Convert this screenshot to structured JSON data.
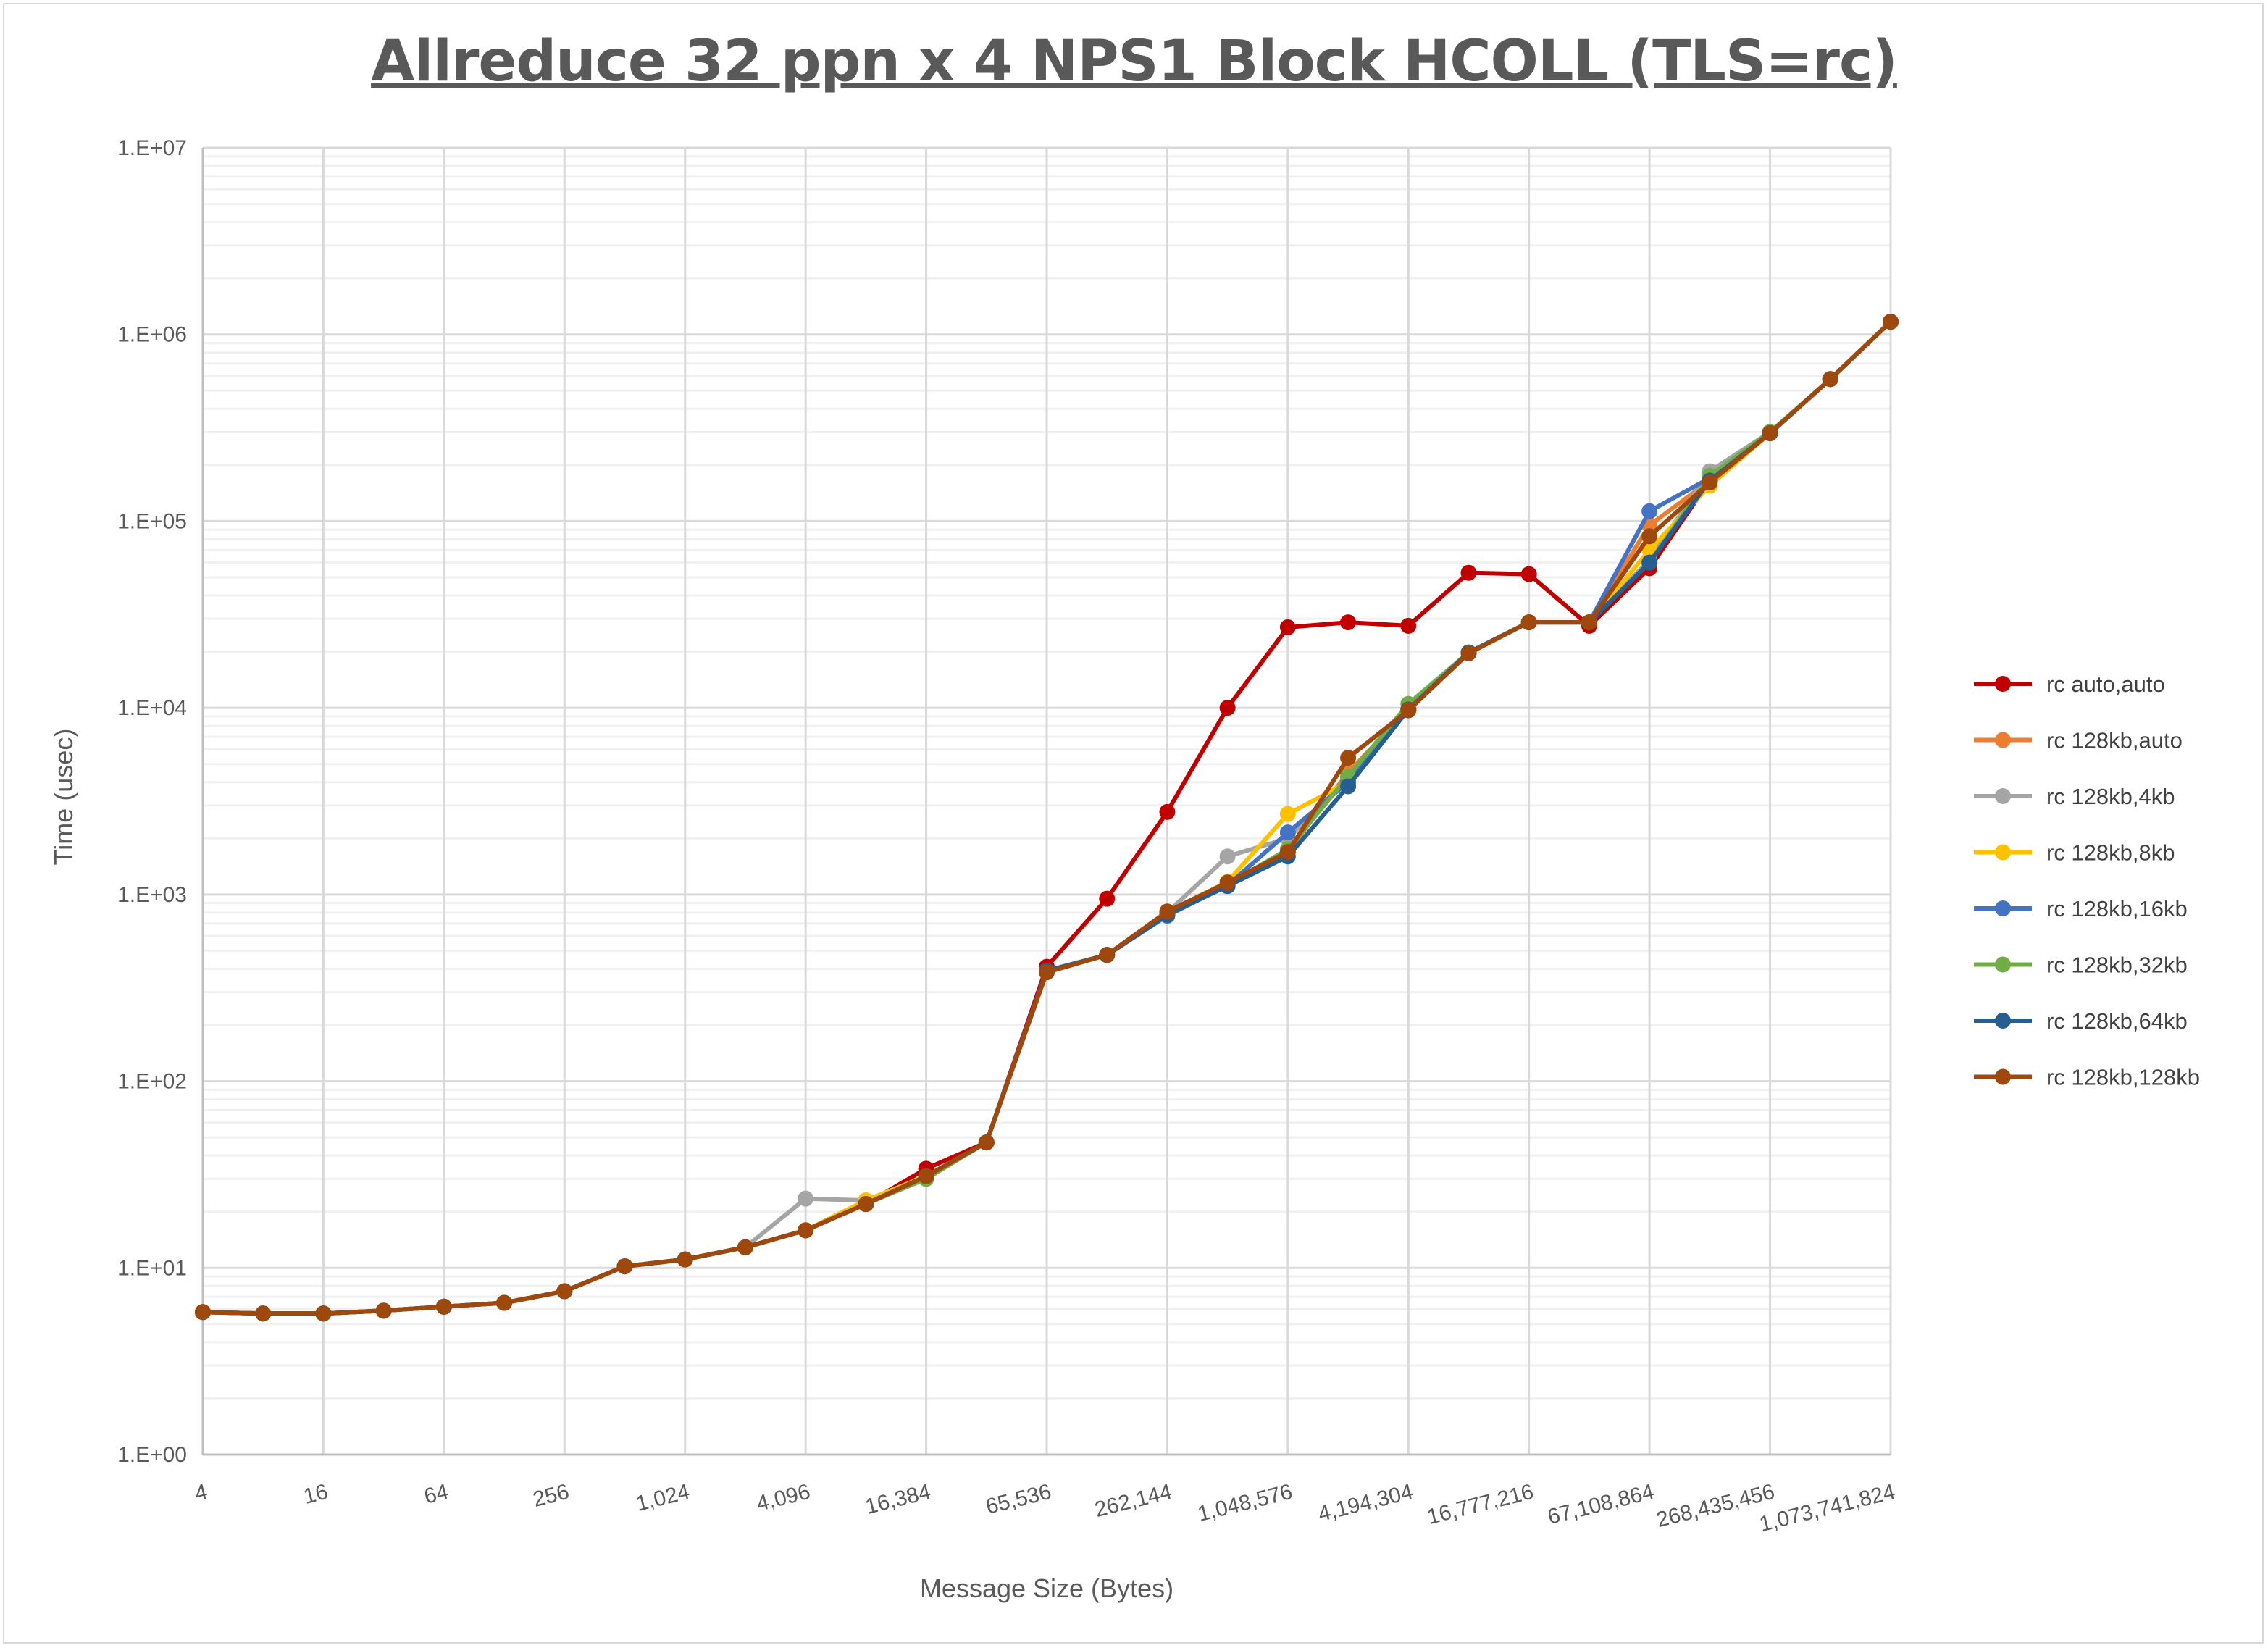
{
  "chart_data": {
    "type": "line",
    "title": "Allreduce 32 ppn x 4 NPS1 Block HCOLL (TLS=rc)",
    "xlabel": "Message Size (Bytes)",
    "ylabel": "Time (usec)",
    "x_scale": "log2",
    "y_scale": "log10",
    "ylim": [
      1,
      10000000
    ],
    "grid": true,
    "legend_position": "right",
    "y_tick_labels": [
      "1.E+00",
      "1.E+01",
      "1.E+02",
      "1.E+03",
      "1.E+04",
      "1.E+05",
      "1.E+06",
      "1.E+07"
    ],
    "x_tick_labels": [
      "4",
      "16",
      "64",
      "256",
      "1,024",
      "4,096",
      "16,384",
      "65,536",
      "262,144",
      "1,048,576",
      "4,194,304",
      "16,777,216",
      "67,108,864",
      "268,435,456",
      "1,073,741,824"
    ],
    "x": [
      4,
      8,
      16,
      32,
      64,
      128,
      256,
      512,
      1024,
      2048,
      4096,
      8192,
      16384,
      32768,
      65536,
      131072,
      262144,
      524288,
      1048576,
      2097152,
      4194304,
      8388608,
      16777216,
      33554432,
      67108864,
      134217728,
      268435456,
      536870912,
      1073741824
    ],
    "series": [
      {
        "name": "rc auto,auto",
        "color": "#c00000",
        "values": [
          5.8,
          5.7,
          5.7,
          5.9,
          6.2,
          6.5,
          7.5,
          10.2,
          11.1,
          12.9,
          15.9,
          22,
          34,
          47,
          410,
          950,
          2770,
          10000,
          27000,
          28700,
          27500,
          52900,
          52000,
          27500,
          56000,
          165000,
          296000,
          577000,
          1170000
        ]
      },
      {
        "name": "rc 128kb,auto",
        "color": "#ed7d31",
        "values": [
          5.8,
          5.7,
          5.7,
          5.9,
          6.2,
          6.5,
          7.5,
          10.2,
          11.1,
          12.9,
          15.9,
          22,
          31,
          47,
          390,
          475,
          800,
          1150,
          1700,
          4500,
          9800,
          19800,
          28700,
          28700,
          95000,
          165000,
          296000,
          577000,
          1170000
        ]
      },
      {
        "name": "rc 128kb,4kb",
        "color": "#a5a5a5",
        "values": [
          5.8,
          5.7,
          5.7,
          5.9,
          6.2,
          6.5,
          7.5,
          10.2,
          11.1,
          12.9,
          23.5,
          23,
          31,
          47,
          390,
          475,
          800,
          1600,
          2000,
          4200,
          9800,
          19800,
          28700,
          28700,
          62000,
          185000,
          300000,
          577000,
          1170000
        ]
      },
      {
        "name": "rc 128kb,8kb",
        "color": "#ffc000",
        "values": [
          5.8,
          5.7,
          5.7,
          5.9,
          6.2,
          6.5,
          7.5,
          10.2,
          11.1,
          12.9,
          15.9,
          23,
          31,
          47,
          390,
          475,
          800,
          1170,
          2700,
          4000,
          9800,
          19800,
          28700,
          28700,
          70000,
          155000,
          296000,
          577000,
          1170000
        ]
      },
      {
        "name": "rc 128kb,16kb",
        "color": "#4472c4",
        "values": [
          5.8,
          5.7,
          5.7,
          5.9,
          6.2,
          6.5,
          7.5,
          10.2,
          11.1,
          12.9,
          15.9,
          22,
          31,
          47,
          390,
          475,
          770,
          1120,
          2150,
          4000,
          9800,
          19800,
          28700,
          28700,
          113000,
          170000,
          296000,
          577000,
          1170000
        ]
      },
      {
        "name": "rc 128kb,32kb",
        "color": "#70ad47",
        "values": [
          5.8,
          5.7,
          5.7,
          5.9,
          6.2,
          6.5,
          7.5,
          10.2,
          11.1,
          12.9,
          15.9,
          22,
          30,
          47,
          390,
          475,
          790,
          1130,
          1750,
          4300,
          10500,
          19800,
          28700,
          28700,
          60000,
          175000,
          300000,
          577000,
          1170000
        ]
      },
      {
        "name": "rc 128kb,64kb",
        "color": "#255e91",
        "values": [
          5.8,
          5.7,
          5.7,
          5.9,
          6.2,
          6.5,
          7.5,
          10.2,
          11.1,
          12.9,
          15.9,
          22,
          31,
          47,
          390,
          475,
          780,
          1110,
          1600,
          3800,
          9800,
          19800,
          28700,
          28700,
          60000,
          165000,
          296000,
          577000,
          1170000
        ]
      },
      {
        "name": "rc 128kb,128kb",
        "color": "#9e480e",
        "values": [
          5.8,
          5.7,
          5.7,
          5.9,
          6.2,
          6.5,
          7.5,
          10.2,
          11.1,
          12.9,
          15.9,
          22,
          31,
          47,
          383,
          475,
          811,
          1160,
          1690,
          5400,
          9700,
          19600,
          28700,
          28700,
          83000,
          161000,
          296000,
          577000,
          1170000
        ]
      }
    ]
  }
}
